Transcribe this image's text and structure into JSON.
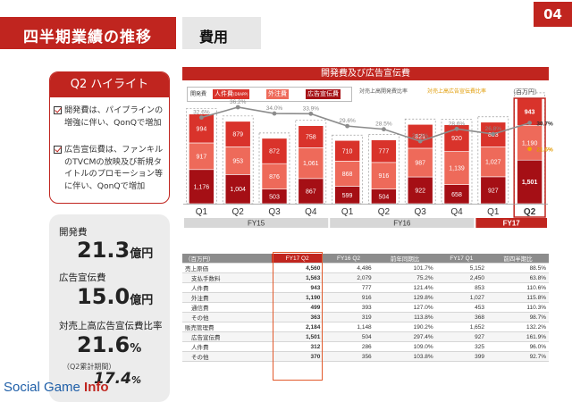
{
  "header": {
    "title": "四半期業績の推移",
    "subtitle": "費用",
    "page_number": "04"
  },
  "highlight": {
    "title": "Q2 ハイライト",
    "items": [
      "開発費は、パイプラインの増強に伴い、QonQで増加",
      "広告宣伝費は、ファンキルのTVCMの放映及び新規タイトルのプロモーション等に伴い、QonQで増加"
    ]
  },
  "kpi": {
    "dev_cost_label": "開発費",
    "dev_cost_value": "21.3",
    "dev_cost_unit": "億円",
    "ad_cost_label": "広告宣伝費",
    "ad_cost_value": "15.0",
    "ad_cost_unit": "億円",
    "ratio_label": "対売上高広告宣伝費比率",
    "ratio_value": "21.6",
    "ratio_unit": "%",
    "ratio_note": "（Q2累計期間）",
    "ratio_cum_value": "17.4",
    "ratio_cum_unit": "%"
  },
  "chart_band": "開発費及び広告宣伝費",
  "legend": {
    "dev_label": "開発費",
    "labor_label": "人件費",
    "labor_tag": "(DRAPP)",
    "outsource_label": "外注費",
    "ad_label": "広告宣伝費",
    "dev_ratio_label": "対売上高開発費比率",
    "ad_ratio_label": "対売上高広告宣伝費比率",
    "unit": "（百万円）"
  },
  "colors": {
    "brand_red": "#c0251f",
    "labor": "#d9332b",
    "outsource": "#ee6a5a",
    "ad": "#a50f15",
    "dev_ratio_line": "#8c8c8c",
    "ad_ratio_line": "#f2a900"
  },
  "chart_data": {
    "type": "bar",
    "categories": [
      "Q1",
      "Q2",
      "Q3",
      "Q4",
      "Q1",
      "Q2",
      "Q3",
      "Q4",
      "Q1",
      "Q2"
    ],
    "fiscal_years": [
      {
        "label": "FY15",
        "count": 4
      },
      {
        "label": "FY16",
        "count": 4
      },
      {
        "label": "FY17",
        "count": 2
      }
    ],
    "series": [
      {
        "name": "広告宣伝費",
        "values": [
          1176,
          1004,
          503,
          867,
          599,
          504,
          922,
          658,
          927,
          1501
        ]
      },
      {
        "name": "外注費",
        "values": [
          917,
          953,
          876,
          1061,
          868,
          916,
          987,
          1139,
          1027,
          1190
        ]
      },
      {
        "name": "人件費",
        "values": [
          994,
          879,
          872,
          758,
          710,
          777,
          821,
          920,
          853,
          943
        ]
      }
    ],
    "lines": [
      {
        "name": "対売上高開発費比率",
        "values": [
          32.6,
          36.2,
          34.0,
          33.9,
          29.6,
          28.5,
          24.3,
          28.6,
          26.8,
          30.7
        ],
        "unit": "%"
      },
      {
        "name": "対売上高広告宣伝費比率",
        "values": [
          null,
          null,
          null,
          null,
          null,
          null,
          null,
          null,
          null,
          21.6
        ],
        "unit": "%"
      }
    ],
    "line_labels": [
      "32.6%",
      "36.2%",
      "34.0%",
      "33.9%",
      "29.6%",
      "28.5%",
      "24.3%",
      "28.6%",
      "26.8%",
      "30.7%"
    ],
    "ad_ratio_label": "21.6%",
    "highlight_category_index": 9
  },
  "table": {
    "headers": [
      "（百万円）",
      "FY17 Q2",
      "FY16 Q2",
      "前年同期比",
      "FY17 Q1",
      "前四半期比"
    ],
    "rows": [
      {
        "label": "売上原価",
        "indent": false,
        "vals": [
          "4,560",
          "4,486",
          "101.7%",
          "5,152",
          "88.5%"
        ]
      },
      {
        "label": "支払手数料",
        "indent": true,
        "vals": [
          "1,563",
          "2,079",
          "75.2%",
          "2,450",
          "63.8%"
        ]
      },
      {
        "label": "人件費",
        "indent": true,
        "vals": [
          "943",
          "777",
          "121.4%",
          "853",
          "110.6%"
        ]
      },
      {
        "label": "外注費",
        "indent": true,
        "vals": [
          "1,190",
          "916",
          "129.8%",
          "1,027",
          "115.8%"
        ]
      },
      {
        "label": "通信費",
        "indent": true,
        "vals": [
          "499",
          "393",
          "127.0%",
          "453",
          "110.3%"
        ]
      },
      {
        "label": "その他",
        "indent": true,
        "vals": [
          "363",
          "319",
          "113.8%",
          "368",
          "98.7%"
        ]
      },
      {
        "label": "販売管理費",
        "indent": false,
        "vals": [
          "2,184",
          "1,148",
          "190.2%",
          "1,652",
          "132.2%"
        ]
      },
      {
        "label": "広告宣伝費",
        "indent": true,
        "vals": [
          "1,501",
          "504",
          "297.4%",
          "927",
          "161.9%"
        ]
      },
      {
        "label": "人件費",
        "indent": true,
        "vals": [
          "312",
          "286",
          "109.0%",
          "325",
          "96.0%"
        ]
      },
      {
        "label": "その他",
        "indent": true,
        "vals": [
          "370",
          "356",
          "103.8%",
          "399",
          "92.7%"
        ]
      }
    ]
  },
  "watermark": {
    "part1": "Social Game ",
    "part2": "Info"
  }
}
